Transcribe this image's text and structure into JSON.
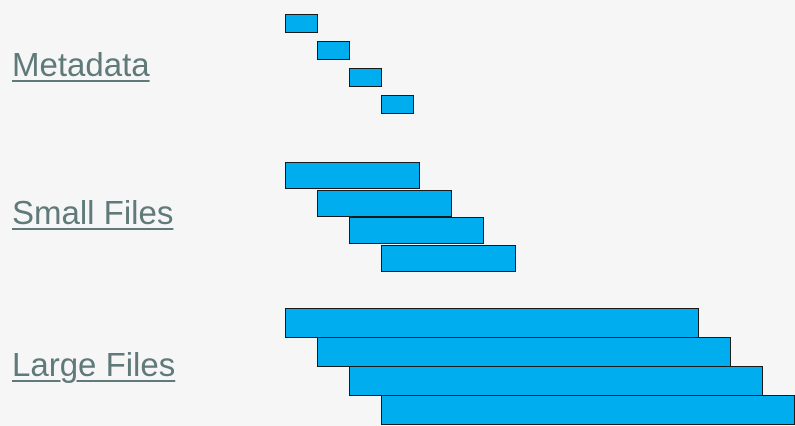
{
  "rows": [
    {
      "label": "Metadata",
      "bars": 4,
      "relative_size": "small"
    },
    {
      "label": "Small Files",
      "bars": 4,
      "relative_size": "medium"
    },
    {
      "label": "Large Files",
      "bars": 4,
      "relative_size": "large"
    }
  ],
  "colors": {
    "bar_fill": "#00adef",
    "bar_border": "#1a1a1a",
    "label_text": "#5f7a78",
    "background": "#f6f6f6"
  }
}
